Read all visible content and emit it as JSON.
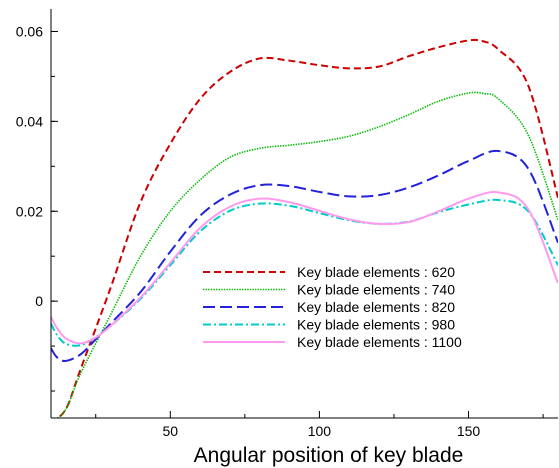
{
  "chart_data": {
    "type": "line",
    "title": "",
    "xlabel": "Angular position of key blade",
    "ylabel": "",
    "xlim": [
      10,
      180
    ],
    "ylim": [
      -0.026,
      0.065
    ],
    "x_ticks": [
      50,
      100,
      150
    ],
    "y_ticks": [
      0,
      0.02,
      0.04,
      0.06
    ],
    "x_tick_labels": [
      "50",
      "100",
      "150"
    ],
    "y_tick_labels": [
      "0",
      "0.02",
      "0.04",
      "0.06"
    ],
    "grid": false,
    "legend_position": "lower-right",
    "series": [
      {
        "name": "Key blade elements : 620",
        "color": "#cc0000",
        "dash": "dashed",
        "x": [
          10,
          15,
          20,
          30,
          40,
          50,
          60,
          70,
          80,
          90,
          100,
          110,
          120,
          130,
          140,
          150,
          155,
          160,
          170,
          180
        ],
        "y": [
          -0.027,
          -0.024,
          -0.015,
          0.003,
          0.022,
          0.035,
          0.045,
          0.051,
          0.054,
          0.0535,
          0.0525,
          0.0518,
          0.0522,
          0.0545,
          0.0565,
          0.058,
          0.0578,
          0.056,
          0.048,
          0.023
        ]
      },
      {
        "name": "Key blade elements : 740",
        "color": "#00bb00",
        "dash": "dotted",
        "x": [
          10,
          15,
          20,
          30,
          40,
          50,
          60,
          70,
          80,
          90,
          100,
          110,
          120,
          130,
          140,
          150,
          155,
          160,
          170,
          180
        ],
        "y": [
          -0.027,
          -0.024,
          -0.016,
          -0.003,
          0.01,
          0.02,
          0.027,
          0.032,
          0.034,
          0.0347,
          0.0355,
          0.0367,
          0.0388,
          0.0415,
          0.0445,
          0.0463,
          0.0462,
          0.045,
          0.037,
          0.018
        ]
      },
      {
        "name": "Key blade elements : 820",
        "color": "#2222dd",
        "dash": "longdash",
        "x": [
          10,
          12,
          15,
          20,
          25,
          30,
          40,
          50,
          60,
          70,
          80,
          90,
          100,
          110,
          120,
          130,
          140,
          150,
          160,
          170,
          180
        ],
        "y": [
          -0.0105,
          -0.0125,
          -0.0133,
          -0.0118,
          -0.0085,
          -0.005,
          0.002,
          0.011,
          0.019,
          0.0237,
          0.0258,
          0.0256,
          0.0243,
          0.0233,
          0.0236,
          0.0253,
          0.028,
          0.0312,
          0.0334,
          0.0295,
          0.013
        ]
      },
      {
        "name": "Key blade elements : 980",
        "color": "#00cccc",
        "dash": "dashdot",
        "x": [
          10,
          12,
          15,
          20,
          25,
          30,
          40,
          50,
          60,
          70,
          80,
          90,
          100,
          110,
          120,
          130,
          140,
          150,
          160,
          170,
          180
        ],
        "y": [
          -0.005,
          -0.0075,
          -0.0095,
          -0.0098,
          -0.008,
          -0.0055,
          0.0005,
          0.008,
          0.0155,
          0.0201,
          0.0217,
          0.0212,
          0.0196,
          0.018,
          0.0172,
          0.0177,
          0.0198,
          0.0215,
          0.0225,
          0.02,
          0.008
        ]
      },
      {
        "name": "Key blade elements : 1100",
        "color": "#ff99ee",
        "dash": "solid",
        "x": [
          10,
          12,
          15,
          20,
          25,
          30,
          40,
          50,
          60,
          70,
          80,
          90,
          100,
          110,
          120,
          130,
          140,
          150,
          160,
          170,
          180
        ],
        "y": [
          -0.0035,
          -0.006,
          -0.0083,
          -0.0094,
          -0.0081,
          -0.0055,
          0.0008,
          0.0085,
          0.0163,
          0.021,
          0.0228,
          0.022,
          0.0201,
          0.0182,
          0.0172,
          0.0176,
          0.02,
          0.0228,
          0.0242,
          0.0205,
          0.004
        ]
      }
    ]
  }
}
